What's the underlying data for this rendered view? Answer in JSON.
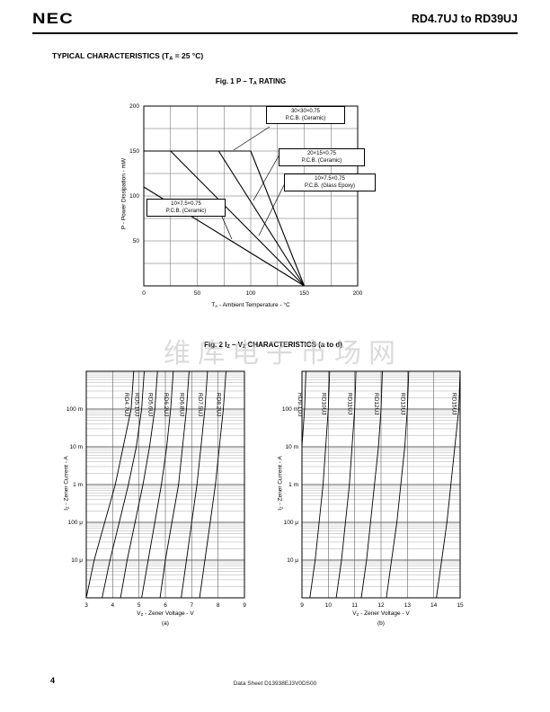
{
  "header": {
    "logo": "NEC",
    "title": "RD4.7UJ to RD39UJ"
  },
  "section_title": {
    "pre": "TYPICAL CHARACTERISTICS (T",
    "sub": "A",
    "post": " = 25 °C)"
  },
  "fig1": {
    "caption": {
      "p1": "Fig. 1  P – T",
      "s1": "A",
      "p2": " RATING"
    },
    "ylabel": "P - Power Dissipation - mW",
    "xlabel": {
      "pre": "T",
      "sub": "A",
      "post": " - Ambient Temperature - °C"
    }
  },
  "fig2": {
    "caption": {
      "p1": "Fig. 2  I",
      "s1": "Z",
      "p2": " – V",
      "s2": "Z",
      "p3": " CHARACTERISTICS (a to d)"
    },
    "ylabel": {
      "pre": "I",
      "sub": "Z",
      "post": " - Zener Current - A"
    },
    "xlabel": {
      "pre": "V",
      "sub": "Z",
      "post": " - Zener Voltage - V"
    },
    "label_a": "(a)",
    "label_b": "(b)"
  },
  "watermark": "维库电子市场网",
  "footer": {
    "page": "4",
    "doc": "Data Sheet  D13938EJ3V0DS00"
  },
  "chart_data": [
    {
      "id": "fig1",
      "type": "line",
      "title": "Fig. 1 P – TA RATING",
      "xlabel": "TA - Ambient Temperature - °C",
      "ylabel": "P - Power Dissipation - mW",
      "xlim": [
        0,
        200
      ],
      "ylim": [
        0,
        200
      ],
      "xticks": [
        0,
        50,
        100,
        150,
        200
      ],
      "yticks": [
        50,
        100,
        150,
        200
      ],
      "grid_step": 25,
      "grid": true,
      "series": [
        {
          "name": "30×30×0.75 P.C.B. (Ceramic)",
          "label": [
            "30×30×0.75",
            "P.C.B. (Ceramic)"
          ],
          "points": [
            [
              0,
              150
            ],
            [
              100,
              150
            ],
            [
              150,
              0
            ]
          ]
        },
        {
          "name": "20×15×0.75 P.C.B. (Ceramic)",
          "label": [
            "20×15×0.75",
            "P.C.B. (Ceramic)"
          ],
          "points": [
            [
              0,
              150
            ],
            [
              70,
              150
            ],
            [
              150,
              0
            ]
          ]
        },
        {
          "name": "10×7.5×0.75 P.C.B. (Glass Epoxy)",
          "label": [
            "10×7.5×0.75",
            "P.C.B. (Glass Epoxy)"
          ],
          "points": [
            [
              0,
              150
            ],
            [
              25,
              150
            ],
            [
              150,
              0
            ]
          ]
        },
        {
          "name": "10×7.5×0.75 P.C.B. (Ceramic)",
          "label": [
            "10×7.5×0.75",
            "P.C.B. (Ceramic)"
          ],
          "points": [
            [
              0,
              110
            ],
            [
              150,
              0
            ]
          ]
        }
      ]
    },
    {
      "id": "fig2a",
      "type": "line",
      "title": "Fig. 2 IZ – VZ CHARACTERISTICS (a)",
      "xlabel": "VZ - Zener Voltage - V",
      "ylabel": "IZ - Zener Current - A",
      "xlim": [
        3,
        9
      ],
      "ylog": true,
      "ylim": [
        1e-06,
        1
      ],
      "yticks": [
        {
          "v": 0.1,
          "label": "100 m"
        },
        {
          "v": 0.01,
          "label": "10 m"
        },
        {
          "v": 0.001,
          "label": "1 m"
        },
        {
          "v": 0.0001,
          "label": "100 μ"
        },
        {
          "v": 1e-05,
          "label": "10 μ"
        }
      ],
      "currents": [
        1e-06,
        1e-05,
        0.0001,
        0.001,
        0.01,
        0.1,
        1
      ],
      "series": [
        {
          "name": "RD4.7UJ",
          "voltages": [
            3.0,
            3.3,
            3.7,
            4.1,
            4.4,
            4.7,
            4.8
          ]
        },
        {
          "name": "RD5.1UJ",
          "voltages": [
            3.6,
            3.9,
            4.25,
            4.6,
            4.9,
            5.1,
            5.2
          ]
        },
        {
          "name": "RD5.6UJ",
          "voltages": [
            4.3,
            4.55,
            4.85,
            5.15,
            5.4,
            5.6,
            5.7
          ]
        },
        {
          "name": "RD6.2UJ",
          "voltages": [
            5.1,
            5.35,
            5.6,
            5.85,
            6.05,
            6.2,
            6.3
          ]
        },
        {
          "name": "RD6.8UJ",
          "voltages": [
            5.8,
            6.0,
            6.25,
            6.5,
            6.65,
            6.8,
            6.9
          ]
        },
        {
          "name": "RD7.5UJ",
          "voltages": [
            6.6,
            6.8,
            7.0,
            7.2,
            7.35,
            7.5,
            7.6
          ]
        },
        {
          "name": "RD8.2UJ",
          "voltages": [
            7.3,
            7.5,
            7.7,
            7.9,
            8.05,
            8.2,
            8.3
          ]
        }
      ],
      "sub_label": "(a)"
    },
    {
      "id": "fig2b",
      "type": "line",
      "title": "Fig. 2 IZ – VZ CHARACTERISTICS (b)",
      "xlabel": "VZ - Zener Voltage - V",
      "ylabel": "IZ - Zener Current - A",
      "xlim": [
        9,
        15
      ],
      "ylog": true,
      "ylim": [
        1e-06,
        1
      ],
      "yticks": [
        {
          "v": 0.1,
          "label": "100 m"
        },
        {
          "v": 0.01,
          "label": "10 m"
        },
        {
          "v": 0.001,
          "label": "1 m"
        },
        {
          "v": 0.0001,
          "label": "100 μ"
        },
        {
          "v": 1e-05,
          "label": "10 μ"
        }
      ],
      "currents": [
        1e-06,
        1e-05,
        0.0001,
        0.001,
        0.01,
        0.1,
        1
      ],
      "series": [
        {
          "name": "RD9.1UJ",
          "voltages": [
            8.5,
            8.65,
            8.8,
            8.9,
            9.0,
            9.1,
            9.15
          ]
        },
        {
          "name": "RD10UJ",
          "voltages": [
            9.3,
            9.5,
            9.65,
            9.8,
            9.9,
            10.0,
            10.05
          ]
        },
        {
          "name": "RD11UJ",
          "voltages": [
            10.3,
            10.5,
            10.65,
            10.8,
            10.9,
            11.0,
            11.05
          ]
        },
        {
          "name": "RD12UJ",
          "voltages": [
            11.25,
            11.45,
            11.6,
            11.75,
            11.9,
            12.0,
            12.05
          ]
        },
        {
          "name": "RD13UJ",
          "voltages": [
            12.2,
            12.4,
            12.6,
            12.75,
            12.9,
            13.0,
            13.05
          ]
        },
        {
          "name": "RD15UJ",
          "voltages": [
            14.1,
            14.3,
            14.5,
            14.65,
            14.8,
            14.95,
            15.0
          ]
        }
      ],
      "sub_label": "(b)"
    }
  ]
}
